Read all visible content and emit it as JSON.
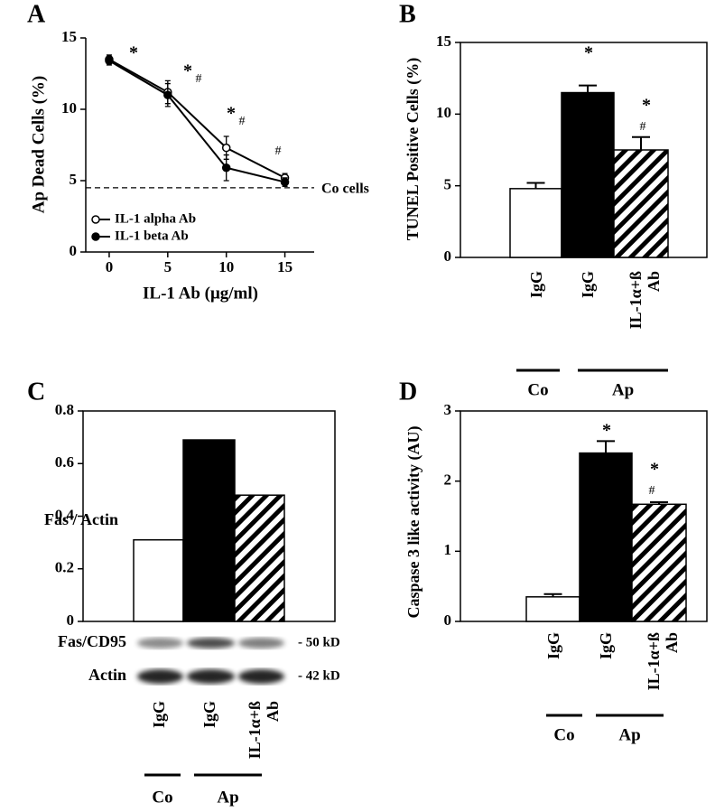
{
  "chart_data": [
    {
      "type": "line",
      "panel": "A",
      "x_label": "IL-1 Ab (μg/ml)",
      "y_label": "Ap Dead Cells (%)",
      "x": [
        0,
        5,
        10,
        15
      ],
      "xlim": [
        -2,
        17.5
      ],
      "xticks": [
        0,
        5,
        10,
        15
      ],
      "ylim": [
        0,
        15
      ],
      "yticks": [
        0,
        5,
        10,
        15
      ],
      "series": [
        {
          "name": "IL-1 alpha Ab",
          "color": "#000000",
          "marker": "open",
          "values": [
            13.5,
            11.2,
            7.3,
            5.2
          ],
          "errors": [
            0.3,
            0.8,
            0.8,
            0.3
          ]
        },
        {
          "name": "IL-1 beta Ab",
          "color": "#000000",
          "marker": "filled",
          "values": [
            13.4,
            11.0,
            5.9,
            4.9
          ],
          "errors": [
            0.3,
            0.8,
            0.9,
            0.3
          ]
        }
      ],
      "reference_line": {
        "value": 4.5,
        "label": "Co cells"
      },
      "annotations": [
        "*",
        "*",
        "#",
        "*",
        "#",
        "#"
      ]
    },
    {
      "type": "bar",
      "panel": "B",
      "y_label": "TUNEL Positive Cells (%)",
      "categories": [
        "IgG",
        "IgG",
        "IL-1α+ß Ab"
      ],
      "values": [
        4.8,
        11.5,
        7.5
      ],
      "errors": [
        0.4,
        0.5,
        0.9
      ],
      "colors": [
        "#ffffff",
        "#000000",
        "#ffffff"
      ],
      "hatch": [
        false,
        false,
        true
      ],
      "ylim": [
        0,
        15
      ],
      "yticks": [
        0,
        5,
        10,
        15
      ],
      "groups": [
        "Co",
        "Ap"
      ],
      "annotations": [
        "*",
        "*",
        "#"
      ]
    },
    {
      "type": "bar",
      "panel": "C",
      "y_label": "Fas / Actin",
      "categories": [
        "IgG",
        "IgG",
        "IL-1α+ß Ab"
      ],
      "values": [
        0.31,
        0.69,
        0.48
      ],
      "colors": [
        "#ffffff",
        "#000000",
        "#ffffff"
      ],
      "hatch": [
        false,
        false,
        true
      ],
      "ylim": [
        0,
        0.8
      ],
      "yticks": [
        0,
        0.2,
        0.4,
        0.6,
        0.8
      ],
      "groups": [
        "Co",
        "Ap"
      ],
      "annotations": [],
      "blot": {
        "rows": [
          "Fas/CD95",
          "Actin"
        ],
        "sizes": [
          "- 50 kD",
          "- 42 kD"
        ]
      }
    },
    {
      "type": "bar",
      "panel": "D",
      "y_label": "Caspase 3 like activity (AU)",
      "categories": [
        "IgG",
        "IgG",
        "IL-1α+ß Ab"
      ],
      "values": [
        0.35,
        2.4,
        1.67
      ],
      "errors": [
        0.04,
        0.17,
        0.03
      ],
      "colors": [
        "#ffffff",
        "#000000",
        "#ffffff"
      ],
      "hatch": [
        false,
        false,
        true
      ],
      "ylim": [
        0,
        3
      ],
      "yticks": [
        0,
        1,
        2,
        3
      ],
      "groups": [
        "Co",
        "Ap"
      ],
      "annotations": [
        "*",
        "*",
        "#"
      ]
    }
  ]
}
